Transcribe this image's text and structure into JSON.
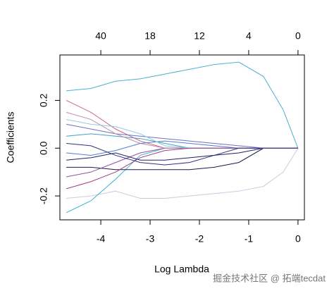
{
  "chart_data": {
    "type": "line",
    "xlabel": "Log Lambda",
    "ylabel": "Coefficients",
    "watermark": "掘金技术社区 @ 拓端tecdat",
    "x": [
      -4.7,
      -4.2,
      -3.7,
      -3.2,
      -2.7,
      -2.2,
      -1.7,
      -1.2,
      -0.7,
      -0.3,
      0
    ],
    "xlim": [
      -4.83,
      0.13
    ],
    "ylim": [
      -0.3,
      0.39
    ],
    "xticks": [
      -4,
      -3,
      -2,
      -1,
      0
    ],
    "x2ticks": [
      {
        "value": -4,
        "label": "40"
      },
      {
        "value": -3,
        "label": "18"
      },
      {
        "value": -2,
        "label": "12"
      },
      {
        "value": -1,
        "label": "4"
      },
      {
        "value": 0,
        "label": "0"
      }
    ],
    "yticks": [
      -0.2,
      {
        "value": 0,
        "label": "0.0"
      },
      0.2
    ],
    "series": [
      {
        "color": "#4ab0d0",
        "values": [
          0.24,
          0.25,
          0.28,
          0.29,
          0.31,
          0.33,
          0.35,
          0.36,
          0.3,
          0.16,
          0
        ]
      },
      {
        "color": "#c8cce0",
        "values": [
          -0.21,
          -0.2,
          -0.18,
          -0.21,
          -0.21,
          -0.2,
          -0.19,
          -0.18,
          -0.16,
          -0.1,
          0
        ]
      },
      {
        "color": "#3ab0d8",
        "values": [
          -0.27,
          -0.22,
          -0.13,
          -0.03,
          0,
          0,
          0,
          0,
          0,
          0,
          0
        ]
      },
      {
        "color": "#1a1a4a",
        "values": [
          -0.08,
          -0.08,
          -0.09,
          -0.09,
          -0.09,
          -0.09,
          -0.08,
          -0.06,
          0,
          0,
          0
        ]
      },
      {
        "color": "#d06080",
        "values": [
          0.2,
          0.15,
          0.08,
          0.03,
          0,
          0,
          0,
          0,
          0,
          0,
          0
        ]
      },
      {
        "color": "#7070c0",
        "values": [
          0.1,
          0.08,
          0.06,
          0.05,
          0.04,
          0.03,
          0.02,
          0.01,
          0,
          0,
          0
        ]
      },
      {
        "color": "#9050a0",
        "values": [
          -0.12,
          -0.1,
          -0.06,
          -0.02,
          0,
          0,
          0,
          0,
          0,
          0,
          0
        ]
      },
      {
        "color": "#40a0c0",
        "values": [
          0.05,
          0.06,
          0.05,
          0.04,
          0.02,
          0,
          0,
          0,
          0,
          0,
          0
        ]
      },
      {
        "color": "#202060",
        "values": [
          -0.05,
          -0.04,
          -0.02,
          -0.05,
          -0.05,
          -0.04,
          -0.03,
          -0.02,
          0,
          0,
          0
        ]
      },
      {
        "color": "#c090b0",
        "values": [
          0.15,
          0.12,
          0.06,
          0.02,
          0,
          0,
          0,
          0,
          0,
          0,
          0
        ]
      },
      {
        "color": "#5080d0",
        "values": [
          -0.02,
          -0.03,
          -0.01,
          0.02,
          0.03,
          0.02,
          0.01,
          0,
          0,
          0,
          0
        ]
      },
      {
        "color": "#90c8e0",
        "values": [
          0.12,
          0.1,
          0.09,
          0.06,
          0.01,
          0,
          0,
          0,
          0,
          0,
          0
        ]
      },
      {
        "color": "#a04080",
        "values": [
          -0.17,
          -0.14,
          -0.1,
          -0.04,
          -0.01,
          0,
          0,
          0,
          0,
          0,
          0
        ]
      },
      {
        "color": "#303080",
        "values": [
          0.02,
          0.01,
          -0.03,
          -0.06,
          -0.07,
          -0.06,
          -0.03,
          0,
          0,
          0,
          0
        ]
      }
    ]
  }
}
